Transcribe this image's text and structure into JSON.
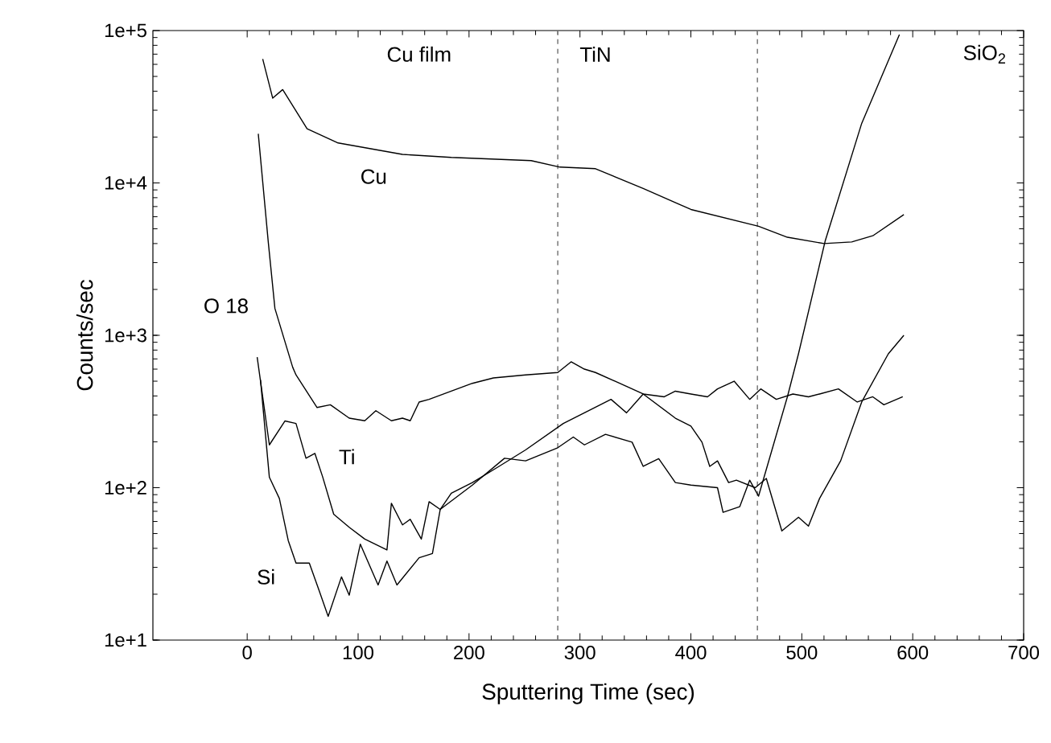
{
  "chart_data": {
    "type": "line",
    "xlabel": "Sputtering Time (sec)",
    "ylabel": "Counts/sec",
    "log": "y",
    "xlim": [
      -85,
      700
    ],
    "ylim": [
      10,
      100000
    ],
    "xticks": [
      0,
      100,
      200,
      300,
      400,
      500,
      600,
      700
    ],
    "yticks": [
      {
        "value": 10,
        "label": "1e+1"
      },
      {
        "value": 100,
        "label": "1e+2"
      },
      {
        "value": 1000,
        "label": "1e+3"
      },
      {
        "value": 10000,
        "label": "1e+4"
      },
      {
        "value": 100000,
        "label": "1e+5"
      }
    ],
    "marker": "none",
    "line_style": "solid",
    "annotations": [
      "Cu film",
      "TiN",
      "SiO$_{2}$"
    ],
    "ref_lines": [
      {
        "axis": "x",
        "value": 280,
        "color": "#808080",
        "line_style": "dashed"
      },
      {
        "axis": "x",
        "value": 460,
        "color": "#808080",
        "line_style": "dashed"
      }
    ],
    "series": [
      {
        "name": "Cu",
        "color": "#000000",
        "x": [
          14,
          23,
          32,
          54,
          82,
          140,
          184,
          256,
          282,
          314,
          357,
          400,
          461,
          487,
          520,
          545,
          564,
          592
        ],
        "values": [
          65000,
          36000,
          41000,
          22700,
          18300,
          15400,
          14700,
          14000,
          12700,
          12400,
          9200,
          6700,
          5200,
          4400,
          4000,
          4100,
          4500,
          6200
        ]
      },
      {
        "name": "O 18",
        "color": "#000000",
        "x": [
          10,
          19,
          25,
          41,
          44,
          63,
          75,
          92,
          106,
          116,
          130,
          140,
          147,
          155,
          164,
          184,
          203,
          222,
          251,
          280,
          292,
          304,
          314,
          341,
          357,
          376,
          386,
          400,
          415,
          424,
          439,
          453,
          463,
          477,
          492,
          506,
          516,
          533,
          550,
          564,
          574,
          591
        ],
        "values": [
          21000,
          4100,
          1500,
          618,
          550,
          336,
          350,
          286,
          275,
          320,
          275,
          286,
          275,
          365,
          380,
          430,
          484,
          525,
          550,
          570,
          670,
          600,
          570,
          466,
          412,
          395,
          430,
          412,
          395,
          445,
          500,
          380,
          445,
          380,
          412,
          395,
          412,
          445,
          365,
          395,
          350,
          395
        ]
      },
      {
        "name": "Ti",
        "color": "#000000",
        "x": [
          9,
          20,
          34,
          44,
          53,
          61,
          68,
          78,
          92,
          106,
          126,
          130,
          140,
          147,
          157,
          164,
          174,
          184,
          203,
          227,
          251,
          285,
          304,
          328,
          342,
          357,
          386,
          400,
          410,
          417,
          424,
          434,
          441,
          458,
          468,
          482,
          497,
          506,
          516,
          535,
          554,
          578,
          592
        ],
        "values": [
          720,
          191,
          274,
          264,
          156,
          168,
          118,
          67,
          55,
          46,
          39,
          79,
          57,
          62,
          46,
          81,
          72,
          92,
          108,
          138,
          177,
          264,
          310,
          380,
          310,
          412,
          286,
          254,
          199,
          138,
          150,
          108,
          112,
          100,
          115,
          52,
          64,
          56,
          85,
          150,
          365,
          756,
          1000
        ]
      },
      {
        "name": "Si",
        "color": "#000000",
        "x": [
          12,
          20,
          29,
          37,
          44,
          56,
          65,
          73,
          85,
          92,
          102,
          118,
          126,
          135,
          155,
          167,
          174,
          203,
          232,
          251,
          280,
          294,
          304,
          323,
          347,
          357,
          371,
          386,
          400,
          424,
          429,
          444,
          453,
          461,
          473,
          487,
          497,
          521,
          554,
          588
        ],
        "values": [
          510,
          117,
          85,
          45,
          32,
          32,
          21,
          14.3,
          26,
          19.7,
          42.6,
          23,
          33,
          23,
          34.7,
          37,
          72,
          104,
          156,
          150,
          183,
          215,
          191,
          224,
          199,
          138,
          155,
          108,
          104,
          100,
          69,
          75,
          112,
          88,
          176,
          395,
          756,
          4140,
          24600,
          94000
        ]
      }
    ]
  }
}
